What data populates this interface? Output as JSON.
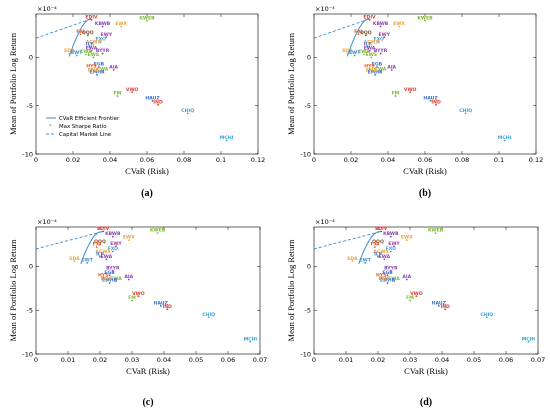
{
  "figure": {
    "panels": [
      {
        "caption": "(a)",
        "xlabel": "CVaR (Risk)",
        "ylabel": "Mean of Portfolio Log Return",
        "exponent": "×10⁻⁴"
      },
      {
        "caption": "(b)",
        "xlabel": "CVaR (Risk)",
        "ylabel": "Mean of Portfolio Log Return",
        "exponent": "×10⁻⁴"
      },
      {
        "caption": "(c)",
        "xlabel": "CVaR (Risk)",
        "ylabel": "Mean of Portfolio Log Return",
        "exponent": "×10⁻⁴"
      },
      {
        "caption": "(d)",
        "xlabel": "CVaR (Risk)",
        "ylabel": "Mean of Portfolio Log Return",
        "exponent": "×10⁻⁴"
      }
    ],
    "legend": [
      "CVaR Efficient Frontier",
      "Max Sharpe Ratio",
      "Capital Market Line"
    ],
    "colors": {
      "frontier": "#3a8fd0",
      "cml": "#3a8fd0",
      "axis": "#000000"
    }
  },
  "chart_data": [
    {
      "type": "scatter",
      "title": "",
      "caption": "(a)",
      "xlabel": "CVaR (Risk)",
      "ylabel": "Mean of Portfolio Log Return",
      "y_multiplier": "×10⁻⁴",
      "xlim": [
        0,
        0.12
      ],
      "ylim": [
        -10,
        4.5
      ],
      "xticks": [
        0,
        0.02,
        0.04,
        0.06,
        0.08,
        0.1,
        0.12
      ],
      "yticks": [
        -10,
        -5,
        0
      ],
      "legend": {
        "position": "lower-left",
        "entries": [
          "CVaR Efficient Frontier",
          "Max Sharpe Ratio",
          "Capital Market Line"
        ]
      },
      "frontier": [
        [
          0.018,
          0.1
        ],
        [
          0.02,
          1.2
        ],
        [
          0.022,
          2.1
        ],
        [
          0.024,
          2.9
        ],
        [
          0.026,
          3.5
        ],
        [
          0.028,
          3.9
        ],
        [
          0.03,
          4.0
        ]
      ],
      "cml": [
        [
          0,
          2.0
        ],
        [
          0.03,
          4.0
        ]
      ],
      "max_sharpe": [
        0.03,
        4.0
      ],
      "points": [
        {
          "label": "KWEB",
          "x": 0.06,
          "y": 3.8,
          "color": "#7cb82f"
        },
        {
          "label": "EDIV",
          "x": 0.03,
          "y": 3.9,
          "color": "#e03a2f"
        },
        {
          "label": "KBWB",
          "x": 0.036,
          "y": 3.2,
          "color": "#8a3fb8"
        },
        {
          "label": "EWX",
          "x": 0.046,
          "y": 3.2,
          "color": "#e8a33c"
        },
        {
          "label": "QQQ",
          "x": 0.028,
          "y": 2.3,
          "color": "#7a4a2a"
        },
        {
          "label": "EWY",
          "x": 0.038,
          "y": 2.1,
          "color": "#9a3fa0"
        },
        {
          "label": "FXI",
          "x": 0.024,
          "y": 2.4,
          "color": "#e05a2f"
        },
        {
          "label": "FXO",
          "x": 0.035,
          "y": 1.6,
          "color": "#3aa0d8"
        },
        {
          "label": "ACWX",
          "x": 0.031,
          "y": 1.3,
          "color": "#e8a33c"
        },
        {
          "label": "ILF",
          "x": 0.029,
          "y": 1.1,
          "color": "#3c6fc8"
        },
        {
          "label": "EWA",
          "x": 0.03,
          "y": 0.7,
          "color": "#8a3fb8"
        },
        {
          "label": "CWB",
          "x": 0.027,
          "y": 0.3,
          "color": "#7cb82f"
        },
        {
          "label": "EWS",
          "x": 0.031,
          "y": 0.0,
          "color": "#7cb82f"
        },
        {
          "label": "BYYR",
          "x": 0.036,
          "y": 0.4,
          "color": "#8a3fb8"
        },
        {
          "label": "SDA",
          "x": 0.018,
          "y": 0.4,
          "color": "#e8a33c"
        },
        {
          "label": "EWT",
          "x": 0.022,
          "y": 0.2,
          "color": "#3a8fd0"
        },
        {
          "label": "EGB",
          "x": 0.034,
          "y": -1.0,
          "color": "#3c6fc8"
        },
        {
          "label": "HYS",
          "x": 0.03,
          "y": -1.2,
          "color": "#e05a2f"
        },
        {
          "label": "AIA",
          "x": 0.042,
          "y": -1.3,
          "color": "#8a3fb8"
        },
        {
          "label": "EWA",
          "x": 0.036,
          "y": -1.5,
          "color": "#7cb82f"
        },
        {
          "label": "EMHR",
          "x": 0.033,
          "y": -1.8,
          "color": "#3c6fc8"
        },
        {
          "label": "EMB",
          "x": 0.031,
          "y": -1.6,
          "color": "#e8a33c"
        },
        {
          "label": "VWO",
          "x": 0.052,
          "y": -3.6,
          "color": "#e03a2f"
        },
        {
          "label": "FM",
          "x": 0.044,
          "y": -4.0,
          "color": "#7cb82f"
        },
        {
          "label": "HAUZ",
          "x": 0.063,
          "y": -4.5,
          "color": "#3c6fc8"
        },
        {
          "label": "IND",
          "x": 0.066,
          "y": -4.9,
          "color": "#e03a2f"
        },
        {
          "label": "CHIQ",
          "x": 0.082,
          "y": -5.8,
          "color": "#3aa0d8"
        },
        {
          "label": "MCHI",
          "x": 0.103,
          "y": -8.6,
          "color": "#3aa0d8"
        }
      ]
    },
    {
      "type": "scatter",
      "title": "",
      "caption": "(b)",
      "xlabel": "CVaR (Risk)",
      "ylabel": "Mean of Portfolio Log Return",
      "y_multiplier": "×10⁻⁴",
      "xlim": [
        0,
        0.12
      ],
      "ylim": [
        -10,
        4.5
      ],
      "xticks": [
        0,
        0.02,
        0.04,
        0.06,
        0.08,
        0.1,
        0.12
      ],
      "yticks": [
        -10,
        -5,
        0
      ],
      "frontier": [
        [
          0.018,
          0.1
        ],
        [
          0.02,
          1.2
        ],
        [
          0.022,
          2.1
        ],
        [
          0.024,
          2.9
        ],
        [
          0.026,
          3.5
        ],
        [
          0.028,
          3.9
        ],
        [
          0.03,
          4.0
        ]
      ],
      "cml": [
        [
          0,
          2.0
        ],
        [
          0.03,
          4.0
        ]
      ],
      "max_sharpe": [
        0.03,
        4.0
      ],
      "points": [
        {
          "label": "KWEB",
          "x": 0.06,
          "y": 3.8,
          "color": "#7cb82f"
        },
        {
          "label": "EDIV",
          "x": 0.03,
          "y": 3.9,
          "color": "#e03a2f"
        },
        {
          "label": "KBWB",
          "x": 0.036,
          "y": 3.2,
          "color": "#8a3fb8"
        },
        {
          "label": "EWX",
          "x": 0.046,
          "y": 3.2,
          "color": "#e8a33c"
        },
        {
          "label": "QQQ",
          "x": 0.028,
          "y": 2.3,
          "color": "#7a4a2a"
        },
        {
          "label": "EWY",
          "x": 0.038,
          "y": 2.1,
          "color": "#9a3fa0"
        },
        {
          "label": "FXI",
          "x": 0.024,
          "y": 2.4,
          "color": "#e05a2f"
        },
        {
          "label": "FXO",
          "x": 0.035,
          "y": 1.6,
          "color": "#3aa0d8"
        },
        {
          "label": "ACWX",
          "x": 0.031,
          "y": 1.3,
          "color": "#e8a33c"
        },
        {
          "label": "ILF",
          "x": 0.029,
          "y": 1.1,
          "color": "#3c6fc8"
        },
        {
          "label": "EWA",
          "x": 0.03,
          "y": 0.7,
          "color": "#8a3fb8"
        },
        {
          "label": "CWB",
          "x": 0.027,
          "y": 0.3,
          "color": "#7cb82f"
        },
        {
          "label": "EWS",
          "x": 0.031,
          "y": 0.0,
          "color": "#7cb82f"
        },
        {
          "label": "BYYR",
          "x": 0.036,
          "y": 0.4,
          "color": "#8a3fb8"
        },
        {
          "label": "SDA",
          "x": 0.018,
          "y": 0.4,
          "color": "#e8a33c"
        },
        {
          "label": "EWT",
          "x": 0.022,
          "y": 0.2,
          "color": "#3a8fd0"
        },
        {
          "label": "EGB",
          "x": 0.034,
          "y": -1.0,
          "color": "#3c6fc8"
        },
        {
          "label": "HYS",
          "x": 0.03,
          "y": -1.2,
          "color": "#e05a2f"
        },
        {
          "label": "AIA",
          "x": 0.042,
          "y": -1.3,
          "color": "#8a3fb8"
        },
        {
          "label": "EWA",
          "x": 0.036,
          "y": -1.5,
          "color": "#7cb82f"
        },
        {
          "label": "EMHR",
          "x": 0.033,
          "y": -1.8,
          "color": "#3c6fc8"
        },
        {
          "label": "EMB",
          "x": 0.031,
          "y": -1.6,
          "color": "#e8a33c"
        },
        {
          "label": "VWO",
          "x": 0.052,
          "y": -3.6,
          "color": "#e03a2f"
        },
        {
          "label": "FM",
          "x": 0.044,
          "y": -4.0,
          "color": "#7cb82f"
        },
        {
          "label": "HAUZ",
          "x": 0.063,
          "y": -4.5,
          "color": "#3c6fc8"
        },
        {
          "label": "IND",
          "x": 0.066,
          "y": -4.9,
          "color": "#e03a2f"
        },
        {
          "label": "CHIQ",
          "x": 0.082,
          "y": -5.8,
          "color": "#3aa0d8"
        },
        {
          "label": "MCHI",
          "x": 0.103,
          "y": -8.6,
          "color": "#3aa0d8"
        }
      ]
    },
    {
      "type": "scatter",
      "title": "",
      "caption": "(c)",
      "xlabel": "CVaR (Risk)",
      "ylabel": "Mean of Portfolio Log Return",
      "y_multiplier": "×10⁻⁴",
      "xlim": [
        0,
        0.07
      ],
      "ylim": [
        -10,
        4.5
      ],
      "xticks": [
        0,
        0.01,
        0.02,
        0.03,
        0.04,
        0.05,
        0.06,
        0.07
      ],
      "yticks": [
        -10,
        -5,
        0
      ],
      "frontier": [
        [
          0.014,
          0.3
        ],
        [
          0.015,
          1.3
        ],
        [
          0.016,
          2.1
        ],
        [
          0.017,
          2.8
        ],
        [
          0.018,
          3.4
        ],
        [
          0.0195,
          3.9
        ],
        [
          0.021,
          4.0
        ]
      ],
      "cml": [
        [
          0,
          2.0
        ],
        [
          0.021,
          4.0
        ]
      ],
      "max_sharpe": [
        0.021,
        4.0
      ],
      "points": [
        {
          "label": "KWEB",
          "x": 0.038,
          "y": 3.8,
          "color": "#7cb82f"
        },
        {
          "label": "EDIV",
          "x": 0.021,
          "y": 4.0,
          "color": "#e03a2f"
        },
        {
          "label": "KBWB",
          "x": 0.024,
          "y": 3.4,
          "color": "#8a3fb8"
        },
        {
          "label": "EWX",
          "x": 0.029,
          "y": 3.0,
          "color": "#e8a33c"
        },
        {
          "label": "QQQ",
          "x": 0.02,
          "y": 2.5,
          "color": "#7a4a2a"
        },
        {
          "label": "EWY",
          "x": 0.025,
          "y": 2.3,
          "color": "#9a3fa0"
        },
        {
          "label": "FXI",
          "x": 0.019,
          "y": 2.2,
          "color": "#e05a2f"
        },
        {
          "label": "FXO",
          "x": 0.024,
          "y": 1.7,
          "color": "#3aa0d8"
        },
        {
          "label": "ACWX",
          "x": 0.021,
          "y": 1.4,
          "color": "#e8a33c"
        },
        {
          "label": "ILF",
          "x": 0.02,
          "y": 1.1,
          "color": "#3c6fc8"
        },
        {
          "label": "EWA",
          "x": 0.022,
          "y": 0.8,
          "color": "#8a3fb8"
        },
        {
          "label": "SDA",
          "x": 0.012,
          "y": 0.6,
          "color": "#e8a33c"
        },
        {
          "label": "EWT",
          "x": 0.016,
          "y": 0.4,
          "color": "#3a8fd0"
        },
        {
          "label": "BYYR",
          "x": 0.024,
          "y": -0.5,
          "color": "#8a3fb8"
        },
        {
          "label": "EGB",
          "x": 0.023,
          "y": -1.0,
          "color": "#3c6fc8"
        },
        {
          "label": "HYS",
          "x": 0.021,
          "y": -1.3,
          "color": "#e05a2f"
        },
        {
          "label": "AIA",
          "x": 0.029,
          "y": -1.5,
          "color": "#8a3fb8"
        },
        {
          "label": "EWA",
          "x": 0.025,
          "y": -1.7,
          "color": "#7cb82f"
        },
        {
          "label": "EMHR",
          "x": 0.023,
          "y": -1.9,
          "color": "#3c6fc8"
        },
        {
          "label": "EMB",
          "x": 0.022,
          "y": -1.7,
          "color": "#e8a33c"
        },
        {
          "label": "VWO",
          "x": 0.032,
          "y": -3.4,
          "color": "#e03a2f"
        },
        {
          "label": "FM",
          "x": 0.03,
          "y": -3.9,
          "color": "#7cb82f"
        },
        {
          "label": "HAUZ",
          "x": 0.039,
          "y": -4.5,
          "color": "#3c6fc8"
        },
        {
          "label": "IND",
          "x": 0.041,
          "y": -4.9,
          "color": "#e03a2f"
        },
        {
          "label": "CHIQ",
          "x": 0.054,
          "y": -5.8,
          "color": "#3aa0d8"
        },
        {
          "label": "MCHI",
          "x": 0.067,
          "y": -8.6,
          "color": "#3aa0d8"
        }
      ]
    },
    {
      "type": "scatter",
      "title": "",
      "caption": "(d)",
      "xlabel": "CVaR (Risk)",
      "ylabel": "Mean of Portfolio Log Return",
      "y_multiplier": "×10⁻⁴",
      "xlim": [
        0,
        0.07
      ],
      "ylim": [
        -10,
        4.5
      ],
      "xticks": [
        0,
        0.01,
        0.02,
        0.03,
        0.04,
        0.05,
        0.06,
        0.07
      ],
      "yticks": [
        -10,
        -5,
        0
      ],
      "frontier": [
        [
          0.014,
          0.3
        ],
        [
          0.015,
          1.3
        ],
        [
          0.016,
          2.1
        ],
        [
          0.017,
          2.8
        ],
        [
          0.018,
          3.4
        ],
        [
          0.0195,
          3.9
        ],
        [
          0.021,
          4.0
        ]
      ],
      "cml": [
        [
          0,
          2.0
        ],
        [
          0.021,
          4.0
        ]
      ],
      "max_sharpe": [
        0.021,
        4.0
      ],
      "points": [
        {
          "label": "KWEB",
          "x": 0.038,
          "y": 3.8,
          "color": "#7cb82f"
        },
        {
          "label": "EDIV",
          "x": 0.021,
          "y": 4.0,
          "color": "#e03a2f"
        },
        {
          "label": "KBWB",
          "x": 0.024,
          "y": 3.4,
          "color": "#8a3fb8"
        },
        {
          "label": "EWX",
          "x": 0.029,
          "y": 3.0,
          "color": "#e8a33c"
        },
        {
          "label": "QQQ",
          "x": 0.02,
          "y": 2.5,
          "color": "#7a4a2a"
        },
        {
          "label": "EWY",
          "x": 0.025,
          "y": 2.3,
          "color": "#9a3fa0"
        },
        {
          "label": "FXI",
          "x": 0.019,
          "y": 2.2,
          "color": "#e05a2f"
        },
        {
          "label": "FXO",
          "x": 0.024,
          "y": 1.7,
          "color": "#3aa0d8"
        },
        {
          "label": "ACWX",
          "x": 0.021,
          "y": 1.4,
          "color": "#e8a33c"
        },
        {
          "label": "ILF",
          "x": 0.02,
          "y": 1.1,
          "color": "#3c6fc8"
        },
        {
          "label": "EWA",
          "x": 0.022,
          "y": 0.8,
          "color": "#8a3fb8"
        },
        {
          "label": "SDA",
          "x": 0.012,
          "y": 0.6,
          "color": "#e8a33c"
        },
        {
          "label": "EWT",
          "x": 0.016,
          "y": 0.4,
          "color": "#3a8fd0"
        },
        {
          "label": "BYYR",
          "x": 0.024,
          "y": -0.5,
          "color": "#8a3fb8"
        },
        {
          "label": "EGB",
          "x": 0.023,
          "y": -1.0,
          "color": "#3c6fc8"
        },
        {
          "label": "HYS",
          "x": 0.021,
          "y": -1.3,
          "color": "#e05a2f"
        },
        {
          "label": "AIA",
          "x": 0.029,
          "y": -1.5,
          "color": "#8a3fb8"
        },
        {
          "label": "EWA",
          "x": 0.025,
          "y": -1.7,
          "color": "#7cb82f"
        },
        {
          "label": "EMHR",
          "x": 0.023,
          "y": -1.9,
          "color": "#3c6fc8"
        },
        {
          "label": "EMB",
          "x": 0.022,
          "y": -1.7,
          "color": "#e8a33c"
        },
        {
          "label": "VWO",
          "x": 0.032,
          "y": -3.4,
          "color": "#e03a2f"
        },
        {
          "label": "FM",
          "x": 0.03,
          "y": -3.9,
          "color": "#7cb82f"
        },
        {
          "label": "HAUZ",
          "x": 0.039,
          "y": -4.5,
          "color": "#3c6fc8"
        },
        {
          "label": "IND",
          "x": 0.041,
          "y": -4.9,
          "color": "#e03a2f"
        },
        {
          "label": "CHIQ",
          "x": 0.054,
          "y": -5.8,
          "color": "#3aa0d8"
        },
        {
          "label": "MCHI",
          "x": 0.067,
          "y": -8.6,
          "color": "#3aa0d8"
        }
      ]
    }
  ]
}
